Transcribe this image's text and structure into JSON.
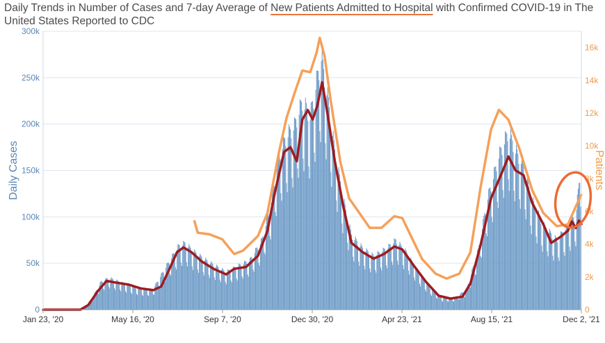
{
  "title": {
    "prefix": "Daily Trends in Number of Cases and 7-day Average of ",
    "highlight": "New Patients Admitted to Hospital",
    "suffix": " with Confirmed COVID-19 in The United States Reported to CDC"
  },
  "colors": {
    "cases_bars": "#6f9cc8",
    "cases_avg": "#9e1b20",
    "admissions": "#f5a05a",
    "annotation": "#ec6b33",
    "grid": "#dde5ee"
  },
  "chart_data": {
    "type": "bar",
    "x_type": "date",
    "xlim": [
      "2020-01-23",
      "2021-12-02"
    ],
    "x_ticks": [
      "Jan 23, '20",
      "May 16, '20",
      "Sep 7, '20",
      "Dec 30, '20",
      "Apr 23, '21",
      "Aug 15, '21",
      "Dec 2, '21"
    ],
    "ylabel": "Daily Cases",
    "ylim": [
      0,
      300000
    ],
    "y_ticks": [
      "0",
      "50k",
      "100k",
      "150k",
      "200k",
      "250k",
      "300k"
    ],
    "y2label": "Patients",
    "y2lim": [
      0,
      17000
    ],
    "y2_ticks": [
      "0",
      "2k",
      "4k",
      "6k",
      "8k",
      "10k",
      "12k",
      "14k",
      "16k"
    ],
    "series": [
      {
        "kind": "bars",
        "points": [
          [
            "2020-01-23",
            0
          ],
          [
            "2020-03-01",
            0
          ],
          [
            "2020-03-15",
            2000
          ],
          [
            "2020-03-25",
            12000
          ],
          [
            "2020-04-05",
            28000
          ],
          [
            "2020-04-15",
            32000
          ],
          [
            "2020-04-25",
            29000
          ],
          [
            "2020-05-05",
            26000
          ],
          [
            "2020-05-20",
            22000
          ],
          [
            "2020-06-01",
            20000
          ],
          [
            "2020-06-10",
            21000
          ],
          [
            "2020-06-20",
            35000
          ],
          [
            "2020-07-01",
            50000
          ],
          [
            "2020-07-12",
            64000
          ],
          [
            "2020-07-20",
            67000
          ],
          [
            "2020-08-01",
            58000
          ],
          [
            "2020-08-15",
            50000
          ],
          [
            "2020-09-01",
            42000
          ],
          [
            "2020-09-10",
            38000
          ],
          [
            "2020-09-25",
            44000
          ],
          [
            "2020-10-10",
            50000
          ],
          [
            "2020-10-25",
            70000
          ],
          [
            "2020-11-05",
            105000
          ],
          [
            "2020-11-15",
            155000
          ],
          [
            "2020-11-25",
            175000
          ],
          [
            "2020-12-05",
            185000
          ],
          [
            "2020-12-15",
            210000
          ],
          [
            "2020-12-25",
            195000
          ],
          [
            "2021-01-02",
            230000
          ],
          [
            "2021-01-08",
            255000
          ],
          [
            "2021-01-15",
            220000
          ],
          [
            "2021-01-25",
            160000
          ],
          [
            "2021-02-05",
            110000
          ],
          [
            "2021-02-15",
            75000
          ],
          [
            "2021-03-01",
            62000
          ],
          [
            "2021-03-15",
            54000
          ],
          [
            "2021-04-01",
            62000
          ],
          [
            "2021-04-12",
            70000
          ],
          [
            "2021-04-25",
            58000
          ],
          [
            "2021-05-10",
            38000
          ],
          [
            "2021-05-25",
            22000
          ],
          [
            "2021-06-10",
            12000
          ],
          [
            "2021-06-25",
            12000
          ],
          [
            "2021-07-10",
            20000
          ],
          [
            "2021-07-25",
            60000
          ],
          [
            "2021-08-05",
            110000
          ],
          [
            "2021-08-20",
            155000
          ],
          [
            "2021-09-01",
            180000
          ],
          [
            "2021-09-10",
            160000
          ],
          [
            "2021-09-20",
            145000
          ],
          [
            "2021-10-01",
            110000
          ],
          [
            "2021-10-15",
            85000
          ],
          [
            "2021-11-01",
            70000
          ],
          [
            "2021-11-15",
            85000
          ],
          [
            "2021-11-25",
            95000
          ],
          [
            "2021-12-02",
            150000
          ]
        ]
      },
      {
        "kind": "line",
        "points": [
          [
            "2020-01-23",
            0
          ],
          [
            "2020-03-10",
            0
          ],
          [
            "2020-03-20",
            5000
          ],
          [
            "2020-04-01",
            20000
          ],
          [
            "2020-04-12",
            31000
          ],
          [
            "2020-04-25",
            29000
          ],
          [
            "2020-05-10",
            27000
          ],
          [
            "2020-05-25",
            23000
          ],
          [
            "2020-06-10",
            21000
          ],
          [
            "2020-06-20",
            25000
          ],
          [
            "2020-07-01",
            45000
          ],
          [
            "2020-07-10",
            62000
          ],
          [
            "2020-07-18",
            67000
          ],
          [
            "2020-07-28",
            62000
          ],
          [
            "2020-08-10",
            52000
          ],
          [
            "2020-08-25",
            44000
          ],
          [
            "2020-09-10",
            38000
          ],
          [
            "2020-09-20",
            44000
          ],
          [
            "2020-10-05",
            46000
          ],
          [
            "2020-10-20",
            58000
          ],
          [
            "2020-11-01",
            85000
          ],
          [
            "2020-11-10",
            125000
          ],
          [
            "2020-11-22",
            170000
          ],
          [
            "2020-11-30",
            175000
          ],
          [
            "2020-12-08",
            160000
          ],
          [
            "2020-12-15",
            205000
          ],
          [
            "2020-12-22",
            215000
          ],
          [
            "2020-12-28",
            205000
          ],
          [
            "2021-01-03",
            220000
          ],
          [
            "2021-01-09",
            245000
          ],
          [
            "2021-01-15",
            215000
          ],
          [
            "2021-01-25",
            160000
          ],
          [
            "2021-02-05",
            110000
          ],
          [
            "2021-02-15",
            72000
          ],
          [
            "2021-03-01",
            62000
          ],
          [
            "2021-03-15",
            55000
          ],
          [
            "2021-03-28",
            60000
          ],
          [
            "2021-04-10",
            68000
          ],
          [
            "2021-04-20",
            65000
          ],
          [
            "2021-05-05",
            47000
          ],
          [
            "2021-05-20",
            30000
          ],
          [
            "2021-06-05",
            15000
          ],
          [
            "2021-06-20",
            12000
          ],
          [
            "2021-07-05",
            14000
          ],
          [
            "2021-07-15",
            28000
          ],
          [
            "2021-07-28",
            70000
          ],
          [
            "2021-08-10",
            120000
          ],
          [
            "2021-08-25",
            150000
          ],
          [
            "2021-09-01",
            165000
          ],
          [
            "2021-09-10",
            150000
          ],
          [
            "2021-09-20",
            145000
          ],
          [
            "2021-10-01",
            115000
          ],
          [
            "2021-10-15",
            92000
          ],
          [
            "2021-10-25",
            72000
          ],
          [
            "2021-11-05",
            78000
          ],
          [
            "2021-11-15",
            85000
          ],
          [
            "2021-11-20",
            95000
          ],
          [
            "2021-11-25",
            88000
          ],
          [
            "2021-11-29",
            96000
          ],
          [
            "2021-12-02",
            92000
          ]
        ]
      },
      {
        "kind": "line",
        "axis": "right",
        "points": [
          [
            "2020-08-01",
            5400
          ],
          [
            "2020-08-05",
            4700
          ],
          [
            "2020-08-20",
            4600
          ],
          [
            "2020-09-05",
            4300
          ],
          [
            "2020-09-20",
            3400
          ],
          [
            "2020-10-01",
            3600
          ],
          [
            "2020-10-20",
            4500
          ],
          [
            "2020-11-01",
            5900
          ],
          [
            "2020-11-15",
            9500
          ],
          [
            "2020-11-25",
            11700
          ],
          [
            "2020-12-05",
            13200
          ],
          [
            "2020-12-15",
            14600
          ],
          [
            "2020-12-25",
            14500
          ],
          [
            "2021-01-02",
            15700
          ],
          [
            "2021-01-06",
            16600
          ],
          [
            "2021-01-12",
            15500
          ],
          [
            "2021-01-20",
            12700
          ],
          [
            "2021-02-01",
            9000
          ],
          [
            "2021-02-12",
            6800
          ],
          [
            "2021-02-25",
            5900
          ],
          [
            "2021-03-10",
            5000
          ],
          [
            "2021-03-25",
            5000
          ],
          [
            "2021-04-10",
            5700
          ],
          [
            "2021-04-20",
            5600
          ],
          [
            "2021-05-01",
            4500
          ],
          [
            "2021-05-15",
            3100
          ],
          [
            "2021-06-01",
            2200
          ],
          [
            "2021-06-15",
            1900
          ],
          [
            "2021-07-01",
            2200
          ],
          [
            "2021-07-15",
            3500
          ],
          [
            "2021-07-28",
            7500
          ],
          [
            "2021-08-10",
            11000
          ],
          [
            "2021-08-20",
            12200
          ],
          [
            "2021-09-01",
            11600
          ],
          [
            "2021-09-15",
            9800
          ],
          [
            "2021-10-01",
            7300
          ],
          [
            "2021-10-15",
            5900
          ],
          [
            "2021-11-01",
            5100
          ],
          [
            "2021-11-15",
            5200
          ],
          [
            "2021-11-25",
            6300
          ],
          [
            "2021-12-02",
            7000
          ]
        ]
      }
    ]
  }
}
